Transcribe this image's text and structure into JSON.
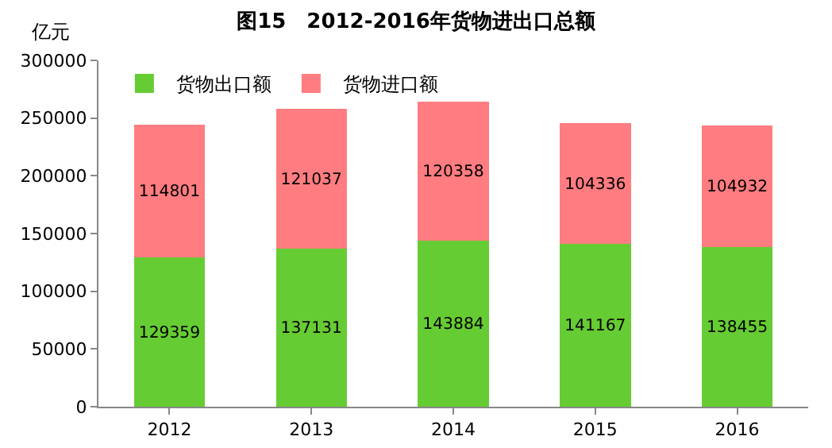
{
  "chart_data": {
    "type": "bar",
    "title": "图15　2012-2016年货物进出口总额",
    "ylabel": "亿元",
    "categories": [
      "2012",
      "2013",
      "2014",
      "2015",
      "2016"
    ],
    "stacked": true,
    "series": [
      {
        "name": "货物出口额",
        "color": "#66cc33",
        "values": [
          129359,
          137131,
          143884,
          141167,
          138455
        ]
      },
      {
        "name": "货物进口额",
        "color": "#ff7c80",
        "values": [
          114801,
          121037,
          120358,
          104336,
          104932
        ]
      }
    ],
    "ylim": [
      0,
      300000
    ],
    "yticks": [
      0,
      50000,
      100000,
      150000,
      200000,
      250000,
      300000
    ],
    "data_labels": true,
    "legend": "top left",
    "grid": false
  }
}
